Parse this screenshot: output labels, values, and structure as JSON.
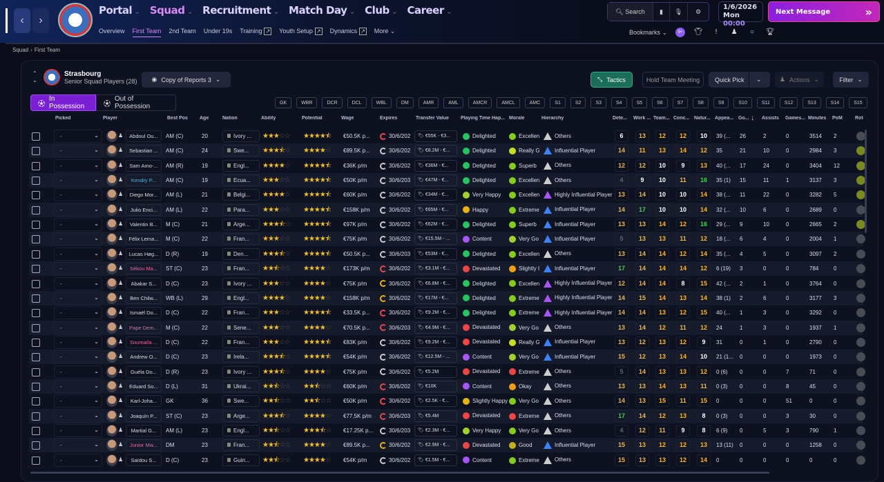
{
  "nav": {
    "back": "‹",
    "forward": "›",
    "main": [
      {
        "label": "Portal"
      },
      {
        "label": "Squad",
        "active": true
      },
      {
        "label": "Recruitment"
      },
      {
        "label": "Match Day"
      },
      {
        "label": "Club"
      },
      {
        "label": "Career"
      }
    ],
    "sub": [
      {
        "label": "Overview"
      },
      {
        "label": "First Team",
        "active": true
      },
      {
        "label": "2nd Team"
      },
      {
        "label": "Under 19s"
      },
      {
        "label": "Training",
        "ext": true
      },
      {
        "label": "Youth Setup",
        "ext": true
      },
      {
        "label": "Dynamics",
        "ext": true
      },
      {
        "label": "More ⌄"
      }
    ]
  },
  "tools": {
    "search": "Search"
  },
  "date": {
    "date": "1/6/2026",
    "day": "Mon",
    "time": "00:00"
  },
  "next_message": "Next Message",
  "bookmarks": {
    "label": "Bookmarks",
    "badge": "9+"
  },
  "breadcrumb": [
    "Squad",
    "First Team"
  ],
  "team": {
    "name": "Strasbourg",
    "subtitle": "Senior Squad Players (28)"
  },
  "view_select": "Copy of Reports 3",
  "buttons": {
    "tactics": "Tactics",
    "meeting": "Hold Team Meeting",
    "quick_pick": "Quick Pick",
    "actions": "Actions",
    "filter": "Filter"
  },
  "tabs": {
    "in_possession": "In Possession",
    "out_possession": "Out of Possession"
  },
  "positions": [
    "GK",
    "WBR",
    "DCR",
    "DCL",
    "WBL",
    "DM",
    "AMR",
    "AML",
    "AMCR",
    "AMCL",
    "AMC",
    "S1",
    "S2",
    "S3",
    "S4",
    "S5",
    "S6",
    "S7",
    "S8",
    "S9",
    "S10",
    "S11",
    "S12",
    "S13",
    "S14",
    "S15"
  ],
  "columns": [
    "Picked",
    "Player",
    "Best Pos",
    "Age",
    "Nation",
    "Ability",
    "Potential",
    "Wage",
    "Expires",
    "Transfer Value",
    "Playing Time Hap...",
    "Morale",
    "Hierarchy",
    "Dete...",
    "Work ...",
    "Team...",
    "Conc...",
    "Natur...",
    "Appea...",
    "Go...",
    "Assists",
    "Games...",
    "Minutes",
    "PoM",
    "Rot"
  ],
  "colors": {
    "accent": "#8b2be2",
    "tactics": "#1a7a5e",
    "good": "#22c55e",
    "warn": "#f59e0b",
    "bad": "#ef4444"
  },
  "rows": [
    {
      "picked": "-",
      "name": "Abdoul Ou...",
      "pos": "AM (C)",
      "age": "20",
      "nation": "Ivory ...",
      "ab": 3,
      "pot": 4.5,
      "wage": "€50.5K p...",
      "exp": "30/6/202",
      "expc": "#e5484d",
      "tv": "€55K - €3...",
      "pth": "Delighted",
      "pthc": "#22c55e",
      "mor": "Excellen",
      "morc": "#84cc16",
      "hier": "Others",
      "hc": "#ccc",
      "det": 6,
      "work": 13,
      "team": 12,
      "conc": 12,
      "nat": 10,
      "apps": "39 (...",
      "goals": "26",
      "ast": "2",
      "games": "0",
      "mins": "3514",
      "pom": "2",
      "rot": "#4a4c55"
    },
    {
      "picked": "-",
      "name": "Sebastian ...",
      "pos": "AM (C)",
      "age": "24",
      "nation": "Swe...",
      "ab": 3.5,
      "pot": 4,
      "wage": "€89.5K p...",
      "exp": "30/6/202",
      "expc": "#ccc",
      "tv": "€8.2M - €...",
      "pth": "Delighted",
      "pthc": "#22c55e",
      "mor": "Really G",
      "morc": "#c5e017",
      "hier": "Influential Player",
      "hc": "#3b82f6",
      "det": 14,
      "work": 11,
      "team": 13,
      "conc": 14,
      "nat": 12,
      "apps": "35",
      "goals": "21",
      "ast": "10",
      "games": "0",
      "mins": "2984",
      "pom": "3",
      "rot": "#7a8a20"
    },
    {
      "picked": "-",
      "name": "Sam Amo-...",
      "pos": "AM (R)",
      "age": "19",
      "nation": "Engl...",
      "ab": 4,
      "pot": 4.5,
      "wage": "€36K p/m",
      "exp": "30/6/202",
      "expc": "#ccc",
      "tv": "€36M - €...",
      "pth": "Delighted",
      "pthc": "#22c55e",
      "mor": "Superb",
      "morc": "#84cc16",
      "hier": "Others",
      "hc": "#ccc",
      "det": 12,
      "work": 12,
      "team": 10,
      "conc": 9,
      "nat": 13,
      "apps": "40 (...",
      "goals": "17",
      "ast": "24",
      "games": "0",
      "mins": "3404",
      "pom": "12",
      "rot": "#7a8a20"
    },
    {
      "picked": "-",
      "name": "Kendry P...",
      "namec": "#5ab0d0",
      "pos": "AM (C)",
      "age": "19",
      "nation": "Ecua...",
      "ab": 3,
      "pot": 4.5,
      "wage": "€50K p/m",
      "exp": "30/6/203",
      "expc": "#ccc",
      "tv": "€47M - €...",
      "pth": "Delighted",
      "pthc": "#22c55e",
      "mor": "Excellen",
      "morc": "#84cc16",
      "hier": "Others",
      "hc": "#ccc",
      "det": 4,
      "work": 9,
      "team": 10,
      "conc": 11,
      "nat": 16,
      "apps": "35 (1)",
      "goals": "15",
      "ast": "11",
      "games": "1",
      "mins": "3137",
      "pom": "3",
      "rot": "#7a8a20"
    },
    {
      "picked": "-",
      "name": "Diego Mor...",
      "pos": "AM (L)",
      "age": "21",
      "nation": "Belgi...",
      "ab": 4,
      "pot": 4.5,
      "wage": "€60K p/m",
      "exp": "30/6/202",
      "expc": "#ccc",
      "tv": "€34M - €...",
      "pth": "Very Happy",
      "pthc": "#a3d12a",
      "mor": "Excellen",
      "morc": "#84cc16",
      "hier": "Highly Influential Player",
      "hc": "#a855f7",
      "det": 13,
      "work": 14,
      "team": 10,
      "conc": 10,
      "nat": 14,
      "apps": "38 (...",
      "goals": "11",
      "ast": "22",
      "games": "0",
      "mins": "3282",
      "pom": "5",
      "rot": "#7a8a20"
    },
    {
      "picked": "-",
      "name": "Julio Enci...",
      "pos": "AM (L)",
      "age": "22",
      "nation": "Para...",
      "ab": 3,
      "pot": 4.5,
      "wage": "€158K p/m",
      "exp": "30/6/202",
      "expc": "#ccc",
      "tv": "€65M - €...",
      "pth": "Happy",
      "pthc": "#eab308",
      "mor": "Extreme",
      "morc": "#84cc16",
      "hier": "Influential Player",
      "hc": "#3b82f6",
      "det": 14,
      "work": 17,
      "team": 10,
      "conc": 10,
      "nat": 14,
      "apps": "32 (...",
      "goals": "10",
      "ast": "6",
      "games": "0",
      "mins": "2689",
      "pom": "0",
      "rot": "#4a4c55"
    },
    {
      "picked": "-",
      "name": "Valentin B...",
      "pos": "M (C)",
      "age": "21",
      "nation": "Arge...",
      "ab": 3.5,
      "pot": 4.5,
      "wage": "€97K p/m",
      "exp": "30/6/202",
      "expc": "#ccc",
      "tv": "€62M - €...",
      "pth": "Delighted",
      "pthc": "#22c55e",
      "mor": "Superb",
      "morc": "#84cc16",
      "hier": "Influential Player",
      "hc": "#3b82f6",
      "det": 13,
      "work": 13,
      "team": 14,
      "conc": 12,
      "nat": 16,
      "apps": "29 (...",
      "goals": "9",
      "ast": "10",
      "games": "0",
      "mins": "2665",
      "pom": "2",
      "rot": "#7a8a20"
    },
    {
      "picked": "-",
      "name": "Félix Lema...",
      "pos": "M (C)",
      "age": "22",
      "nation": "Fran...",
      "ab": 3,
      "pot": 4.5,
      "wage": "€75K p/m",
      "exp": "30/6/202",
      "expc": "#ccc",
      "tv": "€15.5M - ...",
      "pth": "Content",
      "pthc": "#a855f7",
      "mor": "Very Go",
      "morc": "#a3d12a",
      "hier": "Influential Player",
      "hc": "#3b82f6",
      "det": 5,
      "work": 13,
      "team": 13,
      "conc": 11,
      "nat": 12,
      "apps": "18 (...",
      "goals": "6",
      "ast": "4",
      "games": "0",
      "mins": "2004",
      "pom": "1",
      "rot": "#4a4c55"
    },
    {
      "picked": "-",
      "name": "Lucas Høg...",
      "pos": "D (R)",
      "age": "19",
      "nation": "Den...",
      "ab": 3.5,
      "pot": 4.5,
      "wage": "€50.5K p...",
      "exp": "30/6/203",
      "expc": "#ccc",
      "tv": "€53M - €...",
      "pth": "Delighted",
      "pthc": "#22c55e",
      "mor": "Excellen",
      "morc": "#84cc16",
      "hier": "Others",
      "hc": "#ccc",
      "det": 13,
      "work": 14,
      "team": 14,
      "conc": 12,
      "nat": 14,
      "apps": "35 (...",
      "goals": "4",
      "ast": "5",
      "games": "0",
      "mins": "3097",
      "pom": "2",
      "rot": "#4a4c55"
    },
    {
      "picked": "-",
      "name": "Sékou Ma...",
      "namec": "#e06aa0",
      "pos": "ST (C)",
      "age": "23",
      "nation": "Fran...",
      "ab": 2.5,
      "pot": 4,
      "wage": "€173K p/m",
      "exp": "30/6/202",
      "expc": "#e5484d",
      "tv": "€3.1M - €...",
      "pth": "Devastated",
      "pthc": "#ef4444",
      "mor": "Slightly I",
      "morc": "#f59e0b",
      "hier": "Influential Player",
      "hc": "#3b82f6",
      "det": 17,
      "work": 14,
      "team": 14,
      "conc": 14,
      "nat": 12,
      "apps": "6 (19)",
      "goals": "3",
      "ast": "0",
      "games": "0",
      "mins": "784",
      "pom": "0",
      "rot": "#4a4c55"
    },
    {
      "picked": "-",
      "name": "Abakar S...",
      "pos": "D (C)",
      "age": "23",
      "nation": "Ivory ...",
      "ab": 3,
      "pot": 4,
      "wage": "€75K p/m",
      "exp": "30/6/202",
      "expc": "#eab308",
      "tv": "€6.8M - €...",
      "pth": "Delighted",
      "pthc": "#22c55e",
      "mor": "Excellen",
      "morc": "#84cc16",
      "hier": "Highly Influential Player",
      "hc": "#a855f7",
      "det": 12,
      "work": 14,
      "team": 14,
      "conc": 8,
      "nat": 15,
      "apps": "42 (...",
      "goals": "2",
      "ast": "1",
      "games": "0",
      "mins": "3764",
      "pom": "0",
      "rot": "#4a4c55"
    },
    {
      "picked": "-",
      "name": "Ben Chilw...",
      "pos": "WB (L)",
      "age": "29",
      "nation": "Engl...",
      "ab": 4,
      "pot": 4,
      "wage": "€158K p/m",
      "exp": "30/6/202",
      "expc": "#eab308",
      "tv": "€17M - €...",
      "pth": "Delighted",
      "pthc": "#22c55e",
      "mor": "Extreme",
      "morc": "#84cc16",
      "hier": "Highly Influential Player",
      "hc": "#a855f7",
      "det": 14,
      "work": 15,
      "team": 14,
      "conc": 13,
      "nat": 14,
      "apps": "38 (1)",
      "goals": "2",
      "ast": "6",
      "games": "0",
      "mins": "3177",
      "pom": "3",
      "rot": "#4a4c55"
    },
    {
      "picked": "-",
      "name": "Ismaël Do...",
      "pos": "D (C)",
      "age": "22",
      "nation": "Fran...",
      "ab": 3,
      "pot": 4.5,
      "wage": "€33.5K p...",
      "exp": "30/6/202",
      "expc": "#e5484d",
      "tv": "€9.2M - €...",
      "pth": "Delighted",
      "pthc": "#22c55e",
      "mor": "Extreme",
      "morc": "#84cc16",
      "hier": "Highly Influential Player",
      "hc": "#a855f7",
      "det": 14,
      "work": 14,
      "team": 13,
      "conc": 12,
      "nat": 15,
      "apps": "40 (...",
      "goals": "1",
      "ast": "3",
      "games": "0",
      "mins": "3292",
      "pom": "0",
      "rot": "#4a4c55"
    },
    {
      "picked": "-",
      "name": "Pape Dem...",
      "namec": "#e06aa0",
      "pos": "M (C)",
      "age": "22",
      "nation": "Sene...",
      "ab": 3,
      "pot": 4,
      "wage": "€70.5K p...",
      "exp": "30/6/203",
      "expc": "#e5484d",
      "tv": "€4.9M - €...",
      "pth": "Devastated",
      "pthc": "#ef4444",
      "mor": "Very Go",
      "morc": "#a3d12a",
      "hier": "Others",
      "hc": "#ccc",
      "det": 13,
      "work": 14,
      "team": 12,
      "conc": 11,
      "nat": 12,
      "apps": "24",
      "goals": "1",
      "ast": "3",
      "games": "0",
      "mins": "1937",
      "pom": "1",
      "rot": "#4a4c55"
    },
    {
      "picked": "-",
      "name": "Soumaïla ...",
      "namec": "#e06aa0",
      "pos": "D (C)",
      "age": "22",
      "nation": "Fran...",
      "ab": 3,
      "pot": 4.5,
      "wage": "€83K p/m",
      "exp": "30/6/202",
      "expc": "#ccc",
      "tv": "€9.2M - €...",
      "pth": "Devastated",
      "pthc": "#ef4444",
      "mor": "Really G",
      "morc": "#c5e017",
      "hier": "Influential Player",
      "hc": "#3b82f6",
      "det": 13,
      "work": 12,
      "team": 13,
      "conc": 12,
      "nat": 9,
      "apps": "31",
      "goals": "0",
      "ast": "1",
      "games": "0",
      "mins": "2790",
      "pom": "0",
      "rot": "#4a4c55"
    },
    {
      "picked": "-",
      "name": "Andrew O...",
      "pos": "D (C)",
      "age": "23",
      "nation": "Irela...",
      "ab": 3.5,
      "pot": 4.5,
      "wage": "€54K p/m",
      "exp": "30/6/202",
      "expc": "#ccc",
      "tv": "€12.5M - ...",
      "pth": "Content",
      "pthc": "#a855f7",
      "mor": "Very Go",
      "morc": "#a3d12a",
      "hier": "Influential Player",
      "hc": "#3b82f6",
      "det": 15,
      "work": 12,
      "team": 13,
      "conc": 14,
      "nat": 10,
      "apps": "21 (1...",
      "goals": "0",
      "ast": "0",
      "games": "0",
      "mins": "1973",
      "pom": "0",
      "rot": "#4a4c55"
    },
    {
      "picked": "-",
      "name": "Guéla Do...",
      "pos": "D (R)",
      "age": "23",
      "nation": "Ivory ...",
      "ab": 3.5,
      "pot": 4,
      "wage": "€75K p/m",
      "exp": "30/6/202",
      "expc": "#ccc",
      "tv": "€5.2M",
      "pth": "Devastated",
      "pthc": "#ef4444",
      "mor": "Extreme",
      "morc": "#ef4444",
      "hier": "Others",
      "hc": "#ccc",
      "det": 5,
      "work": 14,
      "team": 13,
      "conc": 13,
      "nat": 12,
      "apps": "0 (6)",
      "goals": "0",
      "ast": "0",
      "games": "7",
      "mins": "71",
      "pom": "0",
      "rot": "#4a4c55"
    },
    {
      "picked": "-",
      "name": "Eduard So...",
      "pos": "D (L)",
      "age": "31",
      "nation": "Ukrai...",
      "ab": 2.5,
      "pot": 2.5,
      "wage": "€60K p/m",
      "exp": "30/6/202",
      "expc": "#e5484d",
      "tv": "€10K",
      "pth": "Content",
      "pthc": "#a855f7",
      "mor": "Okay",
      "morc": "#f59e0b",
      "hier": "Others",
      "hc": "#ccc",
      "det": 13,
      "work": 13,
      "team": 14,
      "conc": 13,
      "nat": 11,
      "apps": "0 (3)",
      "goals": "0",
      "ast": "0",
      "games": "8",
      "mins": "45",
      "pom": "0",
      "rot": "#4a4c55"
    },
    {
      "picked": "-",
      "name": "Karl-Joha...",
      "pos": "GK",
      "age": "36",
      "nation": "Swe...",
      "ab": 2.5,
      "pot": 2.5,
      "wage": "€50K p/m",
      "exp": "30/6/202",
      "expc": "#e5484d",
      "tv": "€2.5K - €...",
      "pth": "Slightly Happy",
      "pthc": "#eab308",
      "mor": "Very Go",
      "morc": "#84cc16",
      "hier": "Others",
      "hc": "#ccc",
      "det": 14,
      "work": 13,
      "team": 15,
      "conc": 11,
      "nat": 15,
      "apps": "0",
      "goals": "0",
      "ast": "0",
      "games": "51",
      "mins": "0",
      "pom": "0",
      "rot": "#4a4c55"
    },
    {
      "picked": "-",
      "name": "Joaquín P...",
      "pos": "ST (C)",
      "age": "23",
      "nation": "Arge...",
      "ab": 3.5,
      "pot": 4,
      "wage": "€77.5K p/m",
      "exp": "30/6/203",
      "expc": "#e5484d",
      "tv": "€5.4M",
      "pth": "Devastated",
      "pthc": "#ef4444",
      "mor": "Extreme",
      "morc": "#ef4444",
      "hier": "Others",
      "hc": "#ccc",
      "det": 17,
      "work": 14,
      "team": 12,
      "conc": 13,
      "nat": 8,
      "apps": "0 (3)",
      "goals": "0",
      "ast": "0",
      "games": "3",
      "mins": "30",
      "pom": "0",
      "rot": "#4a4c55"
    },
    {
      "picked": "-",
      "name": "Martial G...",
      "pos": "AM (L)",
      "age": "23",
      "nation": "Engl...",
      "ab": 2.5,
      "pot": 3.5,
      "wage": "€17.25K p...",
      "exp": "30/6/203",
      "expc": "#ccc",
      "tv": "€2.3M - €...",
      "pth": "Very Happy",
      "pthc": "#a3d12a",
      "mor": "Very Go",
      "morc": "#84cc16",
      "hier": "Others",
      "hc": "#ccc",
      "det": 4,
      "work": 12,
      "team": 11,
      "conc": 9,
      "nat": 8,
      "apps": "6 (9)",
      "goals": "0",
      "ast": "5",
      "games": "3",
      "mins": "790",
      "pom": "1",
      "rot": "#4a4c55"
    },
    {
      "picked": "-",
      "name": "Junior Mw...",
      "namec": "#e06aa0",
      "pos": "DM",
      "age": "23",
      "nation": "Fran...",
      "ab": 2.5,
      "pot": 4,
      "wage": "€89.5K p...",
      "exp": "30/6/202",
      "expc": "#eab308",
      "tv": "€2.9M - €...",
      "pth": "Devastated",
      "pthc": "#ef4444",
      "mor": "Good",
      "morc": "#c5b017",
      "hier": "Influential Player",
      "hc": "#3b82f6",
      "det": 15,
      "work": 13,
      "team": 12,
      "conc": 12,
      "nat": 13,
      "apps": "13 (11)",
      "goals": "0",
      "ast": "0",
      "games": "0",
      "mins": "1258",
      "pom": "0",
      "rot": "#4a4c55"
    },
    {
      "picked": "-",
      "name": "Saïdou S...",
      "pos": "D (C)",
      "age": "23",
      "nation": "Guin...",
      "ab": 2.5,
      "pot": 4,
      "wage": "€54K p/m",
      "exp": "30/6/202",
      "expc": "#ccc",
      "tv": "€1.5M - €...",
      "pth": "Content",
      "pthc": "#a855f7",
      "mor": "Extreme",
      "morc": "#84cc16",
      "hier": "Others",
      "hc": "#ccc",
      "det": 15,
      "work": 13,
      "team": 13,
      "conc": 12,
      "nat": 14,
      "apps": "0",
      "goals": "0",
      "ast": "0",
      "games": "0",
      "mins": "0",
      "pom": "0",
      "rot": "#4a4c55"
    }
  ]
}
